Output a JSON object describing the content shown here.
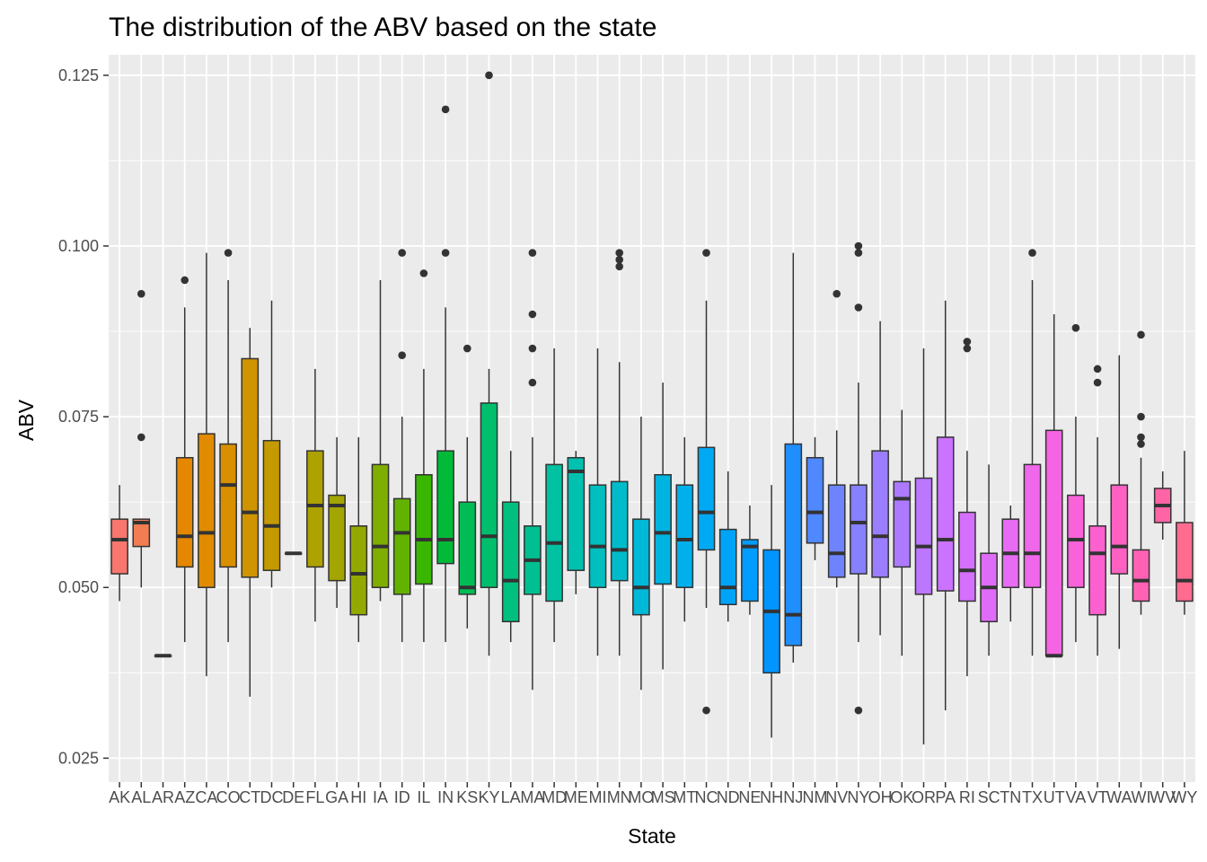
{
  "chart_data": {
    "type": "box",
    "title": "The distribution of the ABV based on the state",
    "xlabel": "State",
    "ylabel": "ABV",
    "ylim": [
      0.0215,
      0.128
    ],
    "yticks": [
      0.025,
      0.05,
      0.075,
      0.1,
      0.125
    ],
    "ytick_labels": [
      "0.025",
      "0.050",
      "0.075",
      "0.100",
      "0.125"
    ],
    "grid": true,
    "legend": "none",
    "categories": [
      "AK",
      "AL",
      "AR",
      "AZ",
      "CA",
      "CO",
      "CT",
      "DC",
      "DE",
      "FL",
      "GA",
      "HI",
      "IA",
      "ID",
      "IL",
      "IN",
      "KS",
      "KY",
      "LA",
      "MA",
      "MD",
      "ME",
      "MI",
      "MN",
      "MO",
      "MS",
      "MT",
      "NC",
      "ND",
      "NE",
      "NH",
      "NJ",
      "NM",
      "NV",
      "NY",
      "OH",
      "OK",
      "OR",
      "PA",
      "RI",
      "SC",
      "TN",
      "TX",
      "UT",
      "VA",
      "VT",
      "WA",
      "WI",
      "WV",
      "WY"
    ],
    "boxes": [
      {
        "min": 0.048,
        "q1": 0.052,
        "median": 0.057,
        "q3": 0.06,
        "max": 0.065,
        "outliers": [],
        "color": "#F8766D"
      },
      {
        "min": 0.05,
        "q1": 0.056,
        "median": 0.0595,
        "q3": 0.06,
        "max": 0.06,
        "outliers": [
          0.072,
          0.093
        ],
        "color": "#F27D53"
      },
      {
        "min": 0.04,
        "q1": 0.04,
        "median": 0.04,
        "q3": 0.04,
        "max": 0.04,
        "outliers": [],
        "color": "#EA8331"
      },
      {
        "min": 0.042,
        "q1": 0.053,
        "median": 0.0575,
        "q3": 0.069,
        "max": 0.091,
        "outliers": [
          0.095
        ],
        "color": "#E58700"
      },
      {
        "min": 0.037,
        "q1": 0.05,
        "median": 0.058,
        "q3": 0.0725,
        "max": 0.099,
        "outliers": [],
        "color": "#E08B00"
      },
      {
        "min": 0.042,
        "q1": 0.053,
        "median": 0.065,
        "q3": 0.071,
        "max": 0.095,
        "outliers": [
          0.099
        ],
        "color": "#D89000"
      },
      {
        "min": 0.034,
        "q1": 0.0515,
        "median": 0.061,
        "q3": 0.0835,
        "max": 0.088,
        "outliers": [],
        "color": "#CF9400"
      },
      {
        "min": 0.05,
        "q1": 0.0525,
        "median": 0.059,
        "q3": 0.0715,
        "max": 0.092,
        "outliers": [],
        "color": "#C49A00"
      },
      {
        "min": 0.055,
        "q1": 0.055,
        "median": 0.055,
        "q3": 0.055,
        "max": 0.055,
        "outliers": [],
        "color": "#B79F00"
      },
      {
        "min": 0.045,
        "q1": 0.053,
        "median": 0.062,
        "q3": 0.07,
        "max": 0.082,
        "outliers": [],
        "color": "#AEA200"
      },
      {
        "min": 0.047,
        "q1": 0.051,
        "median": 0.062,
        "q3": 0.0635,
        "max": 0.072,
        "outliers": [],
        "color": "#A3A500"
      },
      {
        "min": 0.042,
        "q1": 0.046,
        "median": 0.052,
        "q3": 0.059,
        "max": 0.072,
        "outliers": [],
        "color": "#94A900"
      },
      {
        "min": 0.048,
        "q1": 0.05,
        "median": 0.056,
        "q3": 0.068,
        "max": 0.095,
        "outliers": [],
        "color": "#7FAE00"
      },
      {
        "min": 0.042,
        "q1": 0.049,
        "median": 0.058,
        "q3": 0.063,
        "max": 0.075,
        "outliers": [
          0.084,
          0.099
        ],
        "color": "#63B200"
      },
      {
        "min": 0.042,
        "q1": 0.0505,
        "median": 0.057,
        "q3": 0.0665,
        "max": 0.082,
        "outliers": [
          0.096
        ],
        "color": "#39B600"
      },
      {
        "min": 0.042,
        "q1": 0.0535,
        "median": 0.057,
        "q3": 0.07,
        "max": 0.091,
        "outliers": [
          0.099,
          0.12
        ],
        "color": "#00BA38"
      },
      {
        "min": 0.044,
        "q1": 0.049,
        "median": 0.05,
        "q3": 0.0625,
        "max": 0.072,
        "outliers": [
          0.085
        ],
        "color": "#00BC55"
      },
      {
        "min": 0.04,
        "q1": 0.05,
        "median": 0.0575,
        "q3": 0.077,
        "max": 0.082,
        "outliers": [
          0.125
        ],
        "color": "#00BE6C"
      },
      {
        "min": 0.042,
        "q1": 0.045,
        "median": 0.051,
        "q3": 0.0625,
        "max": 0.07,
        "outliers": [],
        "color": "#00BF7F"
      },
      {
        "min": 0.035,
        "q1": 0.049,
        "median": 0.054,
        "q3": 0.059,
        "max": 0.072,
        "outliers": [
          0.08,
          0.085,
          0.09,
          0.099
        ],
        "color": "#00C091"
      },
      {
        "min": 0.042,
        "q1": 0.048,
        "median": 0.0565,
        "q3": 0.068,
        "max": 0.085,
        "outliers": [],
        "color": "#00C1A1"
      },
      {
        "min": 0.049,
        "q1": 0.0525,
        "median": 0.067,
        "q3": 0.069,
        "max": 0.07,
        "outliers": [],
        "color": "#00C0B0"
      },
      {
        "min": 0.04,
        "q1": 0.05,
        "median": 0.056,
        "q3": 0.065,
        "max": 0.085,
        "outliers": [],
        "color": "#00BFBE"
      },
      {
        "min": 0.04,
        "q1": 0.051,
        "median": 0.0555,
        "q3": 0.0655,
        "max": 0.083,
        "outliers": [
          0.097,
          0.098,
          0.099
        ],
        "color": "#00BCCB"
      },
      {
        "min": 0.035,
        "q1": 0.046,
        "median": 0.05,
        "q3": 0.06,
        "max": 0.075,
        "outliers": [],
        "color": "#00B8D7"
      },
      {
        "min": 0.038,
        "q1": 0.0505,
        "median": 0.058,
        "q3": 0.0665,
        "max": 0.08,
        "outliers": [],
        "color": "#00B4E2"
      },
      {
        "min": 0.045,
        "q1": 0.05,
        "median": 0.057,
        "q3": 0.065,
        "max": 0.072,
        "outliers": [],
        "color": "#00AFEB"
      },
      {
        "min": 0.047,
        "q1": 0.0555,
        "median": 0.061,
        "q3": 0.0705,
        "max": 0.092,
        "outliers": [
          0.032,
          0.099
        ],
        "color": "#00A9F4"
      },
      {
        "min": 0.045,
        "q1": 0.0475,
        "median": 0.05,
        "q3": 0.0585,
        "max": 0.067,
        "outliers": [],
        "color": "#00A3FA"
      },
      {
        "min": 0.046,
        "q1": 0.048,
        "median": 0.056,
        "q3": 0.057,
        "max": 0.062,
        "outliers": [],
        "color": "#009CFF"
      },
      {
        "min": 0.028,
        "q1": 0.0375,
        "median": 0.0465,
        "q3": 0.0555,
        "max": 0.065,
        "outliers": [],
        "color": "#0095FF"
      },
      {
        "min": 0.039,
        "q1": 0.0415,
        "median": 0.046,
        "q3": 0.071,
        "max": 0.099,
        "outliers": [],
        "color": "#1F8EFF"
      },
      {
        "min": 0.054,
        "q1": 0.0565,
        "median": 0.061,
        "q3": 0.069,
        "max": 0.072,
        "outliers": [],
        "color": "#4F88FF"
      },
      {
        "min": 0.05,
        "q1": 0.0515,
        "median": 0.055,
        "q3": 0.065,
        "max": 0.073,
        "outliers": [
          0.093
        ],
        "color": "#6E84FF"
      },
      {
        "min": 0.042,
        "q1": 0.052,
        "median": 0.0595,
        "q3": 0.065,
        "max": 0.08,
        "outliers": [
          0.032,
          0.091,
          0.099,
          0.1
        ],
        "color": "#8780FF"
      },
      {
        "min": 0.043,
        "q1": 0.0515,
        "median": 0.0575,
        "q3": 0.07,
        "max": 0.089,
        "outliers": [],
        "color": "#9B7DFF"
      },
      {
        "min": 0.04,
        "q1": 0.053,
        "median": 0.063,
        "q3": 0.0655,
        "max": 0.076,
        "outliers": [],
        "color": "#AD7AFF"
      },
      {
        "min": 0.027,
        "q1": 0.049,
        "median": 0.056,
        "q3": 0.066,
        "max": 0.085,
        "outliers": [],
        "color": "#BD76FF"
      },
      {
        "min": 0.032,
        "q1": 0.0495,
        "median": 0.057,
        "q3": 0.072,
        "max": 0.092,
        "outliers": [],
        "color": "#CA73FF"
      },
      {
        "min": 0.037,
        "q1": 0.048,
        "median": 0.0525,
        "q3": 0.061,
        "max": 0.07,
        "outliers": [
          0.085,
          0.086
        ],
        "color": "#D56FFD"
      },
      {
        "min": 0.04,
        "q1": 0.045,
        "median": 0.05,
        "q3": 0.055,
        "max": 0.068,
        "outliers": [],
        "color": "#DF6CF8"
      },
      {
        "min": 0.045,
        "q1": 0.05,
        "median": 0.055,
        "q3": 0.06,
        "max": 0.062,
        "outliers": [],
        "color": "#E76BF3"
      },
      {
        "min": 0.04,
        "q1": 0.05,
        "median": 0.055,
        "q3": 0.068,
        "max": 0.095,
        "outliers": [
          0.099
        ],
        "color": "#EF67EB"
      },
      {
        "min": 0.04,
        "q1": 0.04,
        "median": 0.04,
        "q3": 0.073,
        "max": 0.09,
        "outliers": [],
        "color": "#F564E3"
      },
      {
        "min": 0.042,
        "q1": 0.05,
        "median": 0.057,
        "q3": 0.0635,
        "max": 0.075,
        "outliers": [
          0.088
        ],
        "color": "#FA62DA"
      },
      {
        "min": 0.04,
        "q1": 0.046,
        "median": 0.055,
        "q3": 0.059,
        "max": 0.072,
        "outliers": [
          0.08,
          0.082
        ],
        "color": "#FC61CF"
      },
      {
        "min": 0.041,
        "q1": 0.052,
        "median": 0.056,
        "q3": 0.065,
        "max": 0.084,
        "outliers": [],
        "color": "#FE61C2"
      },
      {
        "min": 0.046,
        "q1": 0.048,
        "median": 0.051,
        "q3": 0.0555,
        "max": 0.069,
        "outliers": [
          0.071,
          0.072,
          0.075,
          0.087
        ],
        "color": "#FF62B5"
      },
      {
        "min": 0.057,
        "q1": 0.0595,
        "median": 0.062,
        "q3": 0.0645,
        "max": 0.067,
        "outliers": [],
        "color": "#FF64A6"
      },
      {
        "min": 0.046,
        "q1": 0.048,
        "median": 0.051,
        "q3": 0.0595,
        "max": 0.07,
        "outliers": [],
        "color": "#FF6C90"
      }
    ]
  }
}
